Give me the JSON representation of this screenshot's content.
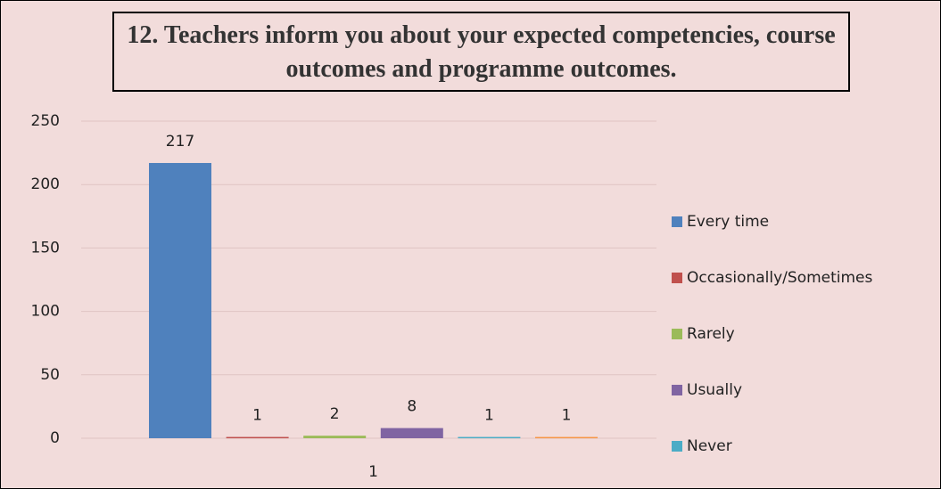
{
  "chart_data": {
    "type": "bar",
    "title": "12. Teachers inform you about your expected competencies, course outcomes and programme outcomes.",
    "categories": [
      "1"
    ],
    "series": [
      {
        "name": "Every time",
        "color": "#4f81bd",
        "values": [
          217
        ]
      },
      {
        "name": "Occasionally/Sometimes",
        "color": "#c0504d",
        "values": [
          1
        ]
      },
      {
        "name": "Rarely",
        "color": "#9bbb59",
        "values": [
          2
        ]
      },
      {
        "name": "Usually",
        "color": "#8064a2",
        "values": [
          8
        ]
      },
      {
        "name": "Never",
        "color": "#4bacc6",
        "values": [
          1
        ]
      },
      {
        "name": null,
        "color": "#f79646",
        "values": [
          1
        ]
      }
    ],
    "ylim": [
      0,
      250
    ],
    "yticks": [
      0,
      50,
      100,
      150,
      200,
      250
    ],
    "grid": true,
    "legend": "right"
  }
}
